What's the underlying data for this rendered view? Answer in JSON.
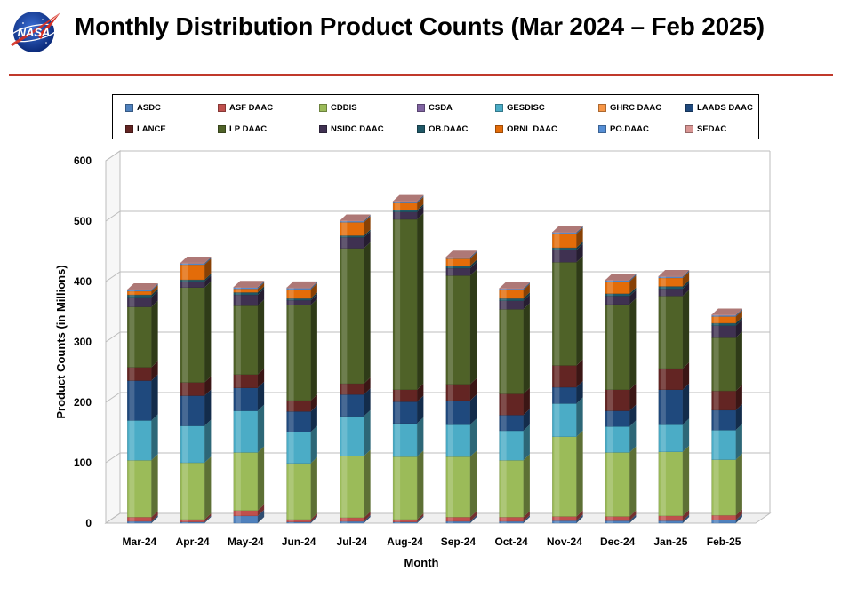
{
  "header": {
    "title": "Monthly Distribution Product Counts (Mar 2024 – Feb 2025)",
    "logo_text": "NASA"
  },
  "colors": {
    "rule": "#c0392b",
    "series": {
      "ASDC": "#4f81bd",
      "ASF DAAC": "#c0504d",
      "CDDIS": "#9bbb59",
      "CSDA": "#8064a2",
      "GESDISC": "#4bacc6",
      "GHRC DAAC": "#f79646",
      "LAADS DAAC": "#1f497d",
      "LANCE": "#632523",
      "LP DAAC": "#4f6228",
      "NSIDC DAAC": "#3f3151",
      "OB.DAAC": "#205867",
      "ORNL DAAC": "#e36c09",
      "PO.DAAC": "#558ed5",
      "SEDAC": "#d99694"
    }
  },
  "chart_data": {
    "type": "bar",
    "stacked": true,
    "title": "Monthly Distribution Product Counts (Mar 2024 – Feb 2025)",
    "xlabel": "Month",
    "ylabel": "Product Counts (in Millions)",
    "ylim": [
      0,
      600
    ],
    "yticks": [
      0,
      100,
      200,
      300,
      400,
      500,
      600
    ],
    "grid": true,
    "legend_position": "top",
    "categories": [
      "Mar-24",
      "Apr-24",
      "May-24",
      "Jun-24",
      "Jul-24",
      "Aug-24",
      "Sep-24",
      "Oct-24",
      "Nov-24",
      "Dec-24",
      "Jan-25",
      "Feb-25"
    ],
    "series": [
      {
        "name": "ASDC",
        "values": [
          3,
          2,
          12,
          2,
          3,
          2,
          3,
          3,
          4,
          4,
          4,
          5
        ]
      },
      {
        "name": "ASF DAAC",
        "values": [
          7,
          4,
          9,
          4,
          6,
          4,
          7,
          7,
          7,
          7,
          8,
          8
        ]
      },
      {
        "name": "CDDIS",
        "values": [
          94,
          94,
          96,
          93,
          102,
          104,
          100,
          94,
          132,
          106,
          106,
          92
        ]
      },
      {
        "name": "CSDA",
        "values": [
          0,
          0,
          0,
          0,
          0,
          0,
          0,
          0,
          0,
          0,
          0,
          0
        ]
      },
      {
        "name": "GESDISC",
        "values": [
          66,
          61,
          69,
          52,
          66,
          55,
          53,
          49,
          55,
          43,
          45,
          49
        ]
      },
      {
        "name": "LAADS DAAC",
        "values": [
          66,
          50,
          38,
          34,
          36,
          36,
          40,
          26,
          27,
          26,
          58,
          33
        ]
      },
      {
        "name": "LANCE",
        "values": [
          22,
          22,
          22,
          18,
          18,
          20,
          27,
          35,
          36,
          35,
          35,
          32
        ]
      },
      {
        "name": "LP DAAC",
        "values": [
          100,
          157,
          114,
          158,
          224,
          282,
          180,
          140,
          171,
          141,
          120,
          88
        ]
      },
      {
        "name": "NSIDC DAAC",
        "values": [
          16,
          10,
          18,
          8,
          18,
          12,
          12,
          14,
          20,
          14,
          12,
          20
        ]
      },
      {
        "name": "OB.DAAC",
        "values": [
          4,
          3,
          4,
          3,
          3,
          3,
          4,
          4,
          4,
          4,
          4,
          4
        ]
      },
      {
        "name": "GHRC DAAC",
        "values": [
          0,
          0,
          0,
          0,
          0,
          0,
          0,
          0,
          0,
          0,
          0,
          0
        ]
      },
      {
        "name": "ORNL DAAC",
        "values": [
          6,
          25,
          6,
          15,
          22,
          12,
          12,
          14,
          23,
          20,
          14,
          11
        ]
      },
      {
        "name": "PO.DAAC",
        "values": [
          2,
          2,
          2,
          2,
          2,
          2,
          2,
          2,
          2,
          2,
          2,
          2
        ]
      },
      {
        "name": "SEDAC",
        "values": [
          1,
          1,
          1,
          1,
          1,
          1,
          1,
          1,
          1,
          1,
          1,
          1
        ]
      }
    ]
  },
  "legend": {
    "items": [
      "ASDC",
      "ASF DAAC",
      "CDDIS",
      "CSDA",
      "GESDISC",
      "GHRC DAAC",
      "LAADS DAAC",
      "LANCE",
      "LP DAAC",
      "NSIDC DAAC",
      "OB.DAAC",
      "ORNL DAAC",
      "PO.DAAC",
      "SEDAC"
    ]
  }
}
